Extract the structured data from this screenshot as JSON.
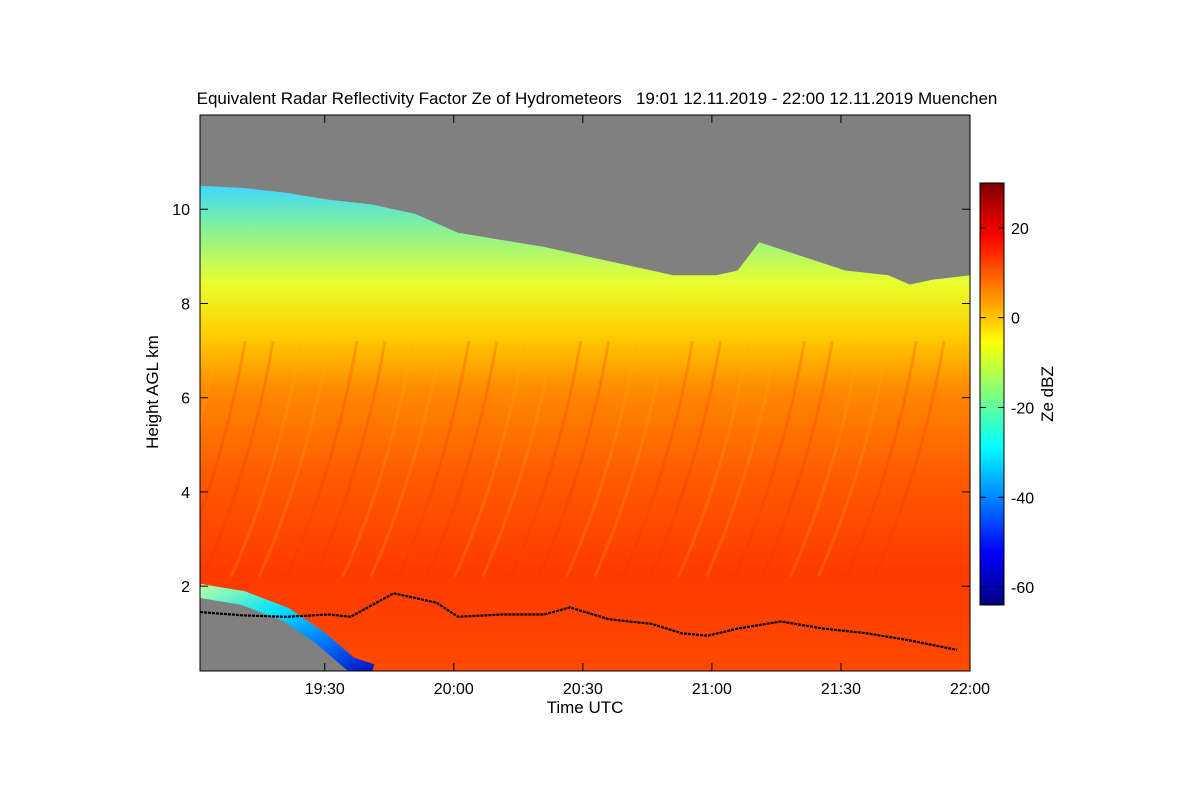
{
  "chart_data": {
    "type": "heatmap",
    "title": "Equivalent Radar Reflectivity Factor Ze of Hydrometeors   19:01 12.11.2019 - 22:00 12.11.2019 Muenchen",
    "xlabel": "Time UTC",
    "ylabel": "Height AGL km",
    "colorbar_label": "Ze dBZ",
    "x_ticks": [
      "19:30",
      "20:00",
      "20:30",
      "21:00",
      "21:30",
      "22:00"
    ],
    "x_tick_minutes": [
      29,
      59,
      89,
      119,
      149,
      179
    ],
    "y_ticks": [
      "2",
      "4",
      "6",
      "8",
      "10"
    ],
    "y_tick_values": [
      2,
      4,
      6,
      8,
      10
    ],
    "xlim_minutes": [
      0,
      179
    ],
    "ylim_km": [
      0.2,
      12.0
    ],
    "colorbar_ticks": [
      "-60",
      "-40",
      "-20",
      "0",
      "20"
    ],
    "colorbar_tick_values": [
      -60,
      -40,
      -20,
      0,
      20
    ],
    "colorbar_range_dbz": [
      -64,
      30
    ],
    "no_echo_color": "#808080",
    "colormap": [
      "#00007f",
      "#0000ff",
      "#007fff",
      "#00ffff",
      "#7fff7f",
      "#ffff00",
      "#ff7f00",
      "#ff0000",
      "#7f0000"
    ],
    "echo_top_km": [
      [
        0,
        10.5
      ],
      [
        10,
        10.45
      ],
      [
        20,
        10.35
      ],
      [
        30,
        10.2
      ],
      [
        40,
        10.1
      ],
      [
        50,
        9.9
      ],
      [
        60,
        9.5
      ],
      [
        70,
        9.35
      ],
      [
        80,
        9.2
      ],
      [
        90,
        9.0
      ],
      [
        100,
        8.8
      ],
      [
        110,
        8.6
      ],
      [
        120,
        8.6
      ],
      [
        125,
        8.7
      ],
      [
        130,
        9.3
      ],
      [
        140,
        9.0
      ],
      [
        150,
        8.7
      ],
      [
        160,
        8.6
      ],
      [
        165,
        8.4
      ],
      [
        170,
        8.5
      ],
      [
        179,
        8.6
      ]
    ],
    "cloud_base_km": [
      [
        0,
        1.45
      ],
      [
        10,
        1.38
      ],
      [
        20,
        1.35
      ],
      [
        30,
        1.4
      ],
      [
        35,
        1.35
      ],
      [
        45,
        1.85
      ],
      [
        55,
        1.65
      ],
      [
        60,
        1.35
      ],
      [
        70,
        1.4
      ],
      [
        80,
        1.4
      ],
      [
        86,
        1.55
      ],
      [
        95,
        1.3
      ],
      [
        105,
        1.2
      ],
      [
        112,
        1.0
      ],
      [
        118,
        0.95
      ],
      [
        125,
        1.1
      ],
      [
        135,
        1.25
      ],
      [
        145,
        1.1
      ],
      [
        155,
        1.0
      ],
      [
        165,
        0.85
      ],
      [
        173,
        0.7
      ],
      [
        176,
        0.65
      ]
    ],
    "low_level_dry_layer_km": [
      [
        0,
        1.9
      ],
      [
        10,
        1.75
      ],
      [
        20,
        1.4
      ],
      [
        28,
        0.9
      ],
      [
        35,
        0.35
      ],
      [
        40,
        0.2
      ]
    ],
    "grid": false
  }
}
